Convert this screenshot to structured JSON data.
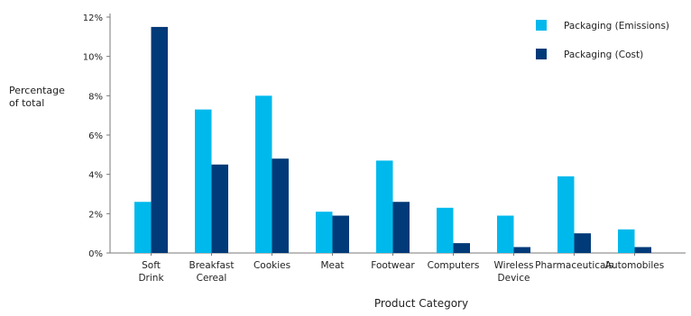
{
  "chart_data": {
    "type": "bar",
    "ylabel_lines": [
      "Percentage",
      "of total"
    ],
    "xlabel": "Product Category",
    "ylim": [
      0,
      12
    ],
    "yticks": [
      0,
      2,
      4,
      6,
      8,
      10,
      12
    ],
    "ytick_labels": [
      "0%",
      "2%",
      "4%",
      "6%",
      "8%",
      "10%",
      "12%"
    ],
    "grid": false,
    "legend_position": "top-right",
    "categories": [
      [
        "Soft",
        "Drink"
      ],
      [
        "Breakfast",
        "Cereal"
      ],
      [
        "Cookies"
      ],
      [
        "Meat"
      ],
      [
        "Footwear"
      ],
      [
        "Computers"
      ],
      [
        "Wireless",
        "Device"
      ],
      [
        "Pharmaceuticals"
      ],
      [
        "Automobiles"
      ]
    ],
    "series": [
      {
        "name": "Packaging (Emissions)",
        "color": "#00B9EC",
        "values": [
          2.6,
          7.3,
          8.0,
          2.1,
          4.7,
          2.3,
          1.9,
          3.9,
          1.2
        ]
      },
      {
        "name": "Packaging (Cost)",
        "color": "#003A78",
        "values": [
          11.5,
          4.5,
          4.8,
          1.9,
          2.6,
          0.5,
          0.3,
          1.0,
          0.3
        ]
      }
    ]
  }
}
